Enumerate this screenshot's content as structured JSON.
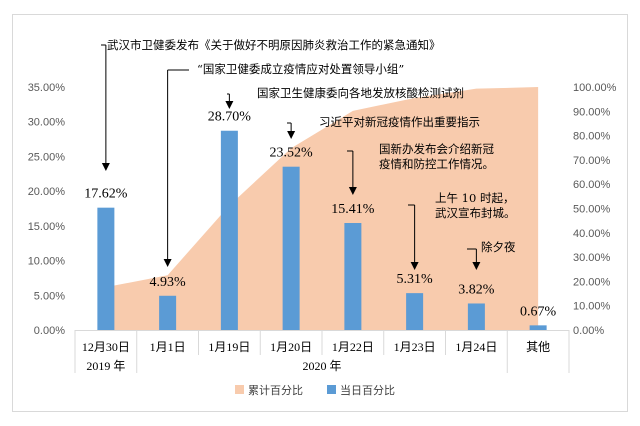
{
  "chart_data": {
    "type": "bar",
    "categories": [
      "12月30日",
      "1月1日",
      "1月19日",
      "1月20日",
      "1月22日",
      "1月23日",
      "1月24日",
      "其他"
    ],
    "group_labels": [
      "2019 年",
      "2020 年"
    ],
    "series": [
      {
        "name": "当日百分比",
        "type": "bar",
        "axis": "left",
        "color": "#5b9bd5",
        "values": [
          17.62,
          4.93,
          28.7,
          23.52,
          15.41,
          5.31,
          3.82,
          0.67
        ],
        "data_labels": [
          "17.62%",
          "4.93%",
          "28.70%",
          "23.52%",
          "15.41%",
          "5.31%",
          "3.82%",
          "0.67%"
        ]
      },
      {
        "name": "累计百分比",
        "type": "area",
        "axis": "right",
        "color": "#f8cbad",
        "values": [
          17.62,
          22.55,
          51.25,
          74.77,
          90.18,
          95.49,
          99.31,
          99.98
        ]
      }
    ],
    "y_left": {
      "ylim": [
        0,
        35
      ],
      "ticks": [
        "0.00%",
        "5.00%",
        "10.00%",
        "15.00%",
        "20.00%",
        "25.00%",
        "30.00%",
        "35.00%"
      ]
    },
    "y_right": {
      "ylim": [
        0,
        100
      ],
      "ticks": [
        "0.00%",
        "10.00%",
        "20.00%",
        "30.00%",
        "40.00%",
        "50.00%",
        "60.00%",
        "70.00%",
        "80.00%",
        "90.00%",
        "100.00%"
      ]
    },
    "annotations": [
      {
        "category": 0,
        "text": [
          "武汉市卫健委发布《关于做好不明原因肺炎救治工作的紧急通知》"
        ]
      },
      {
        "category": 1,
        "text": [
          "“国家卫健委成立疫情应对处置领导小组”"
        ]
      },
      {
        "category": 2,
        "text": [
          "国家卫生健康委向各地发放核酸检测试剂"
        ]
      },
      {
        "category": 3,
        "text": [
          "习近平对新冠疫情作出重要指示"
        ]
      },
      {
        "category": 4,
        "text": [
          "国新办发布会介绍新冠",
          "疫情和防控工作情况。"
        ]
      },
      {
        "category": 5,
        "text": [
          "上午 10 时起，",
          "武汉宣布封城。"
        ]
      },
      {
        "category": 6,
        "text": [
          "除夕夜"
        ]
      }
    ],
    "legend_position": "bottom",
    "grid": false
  }
}
